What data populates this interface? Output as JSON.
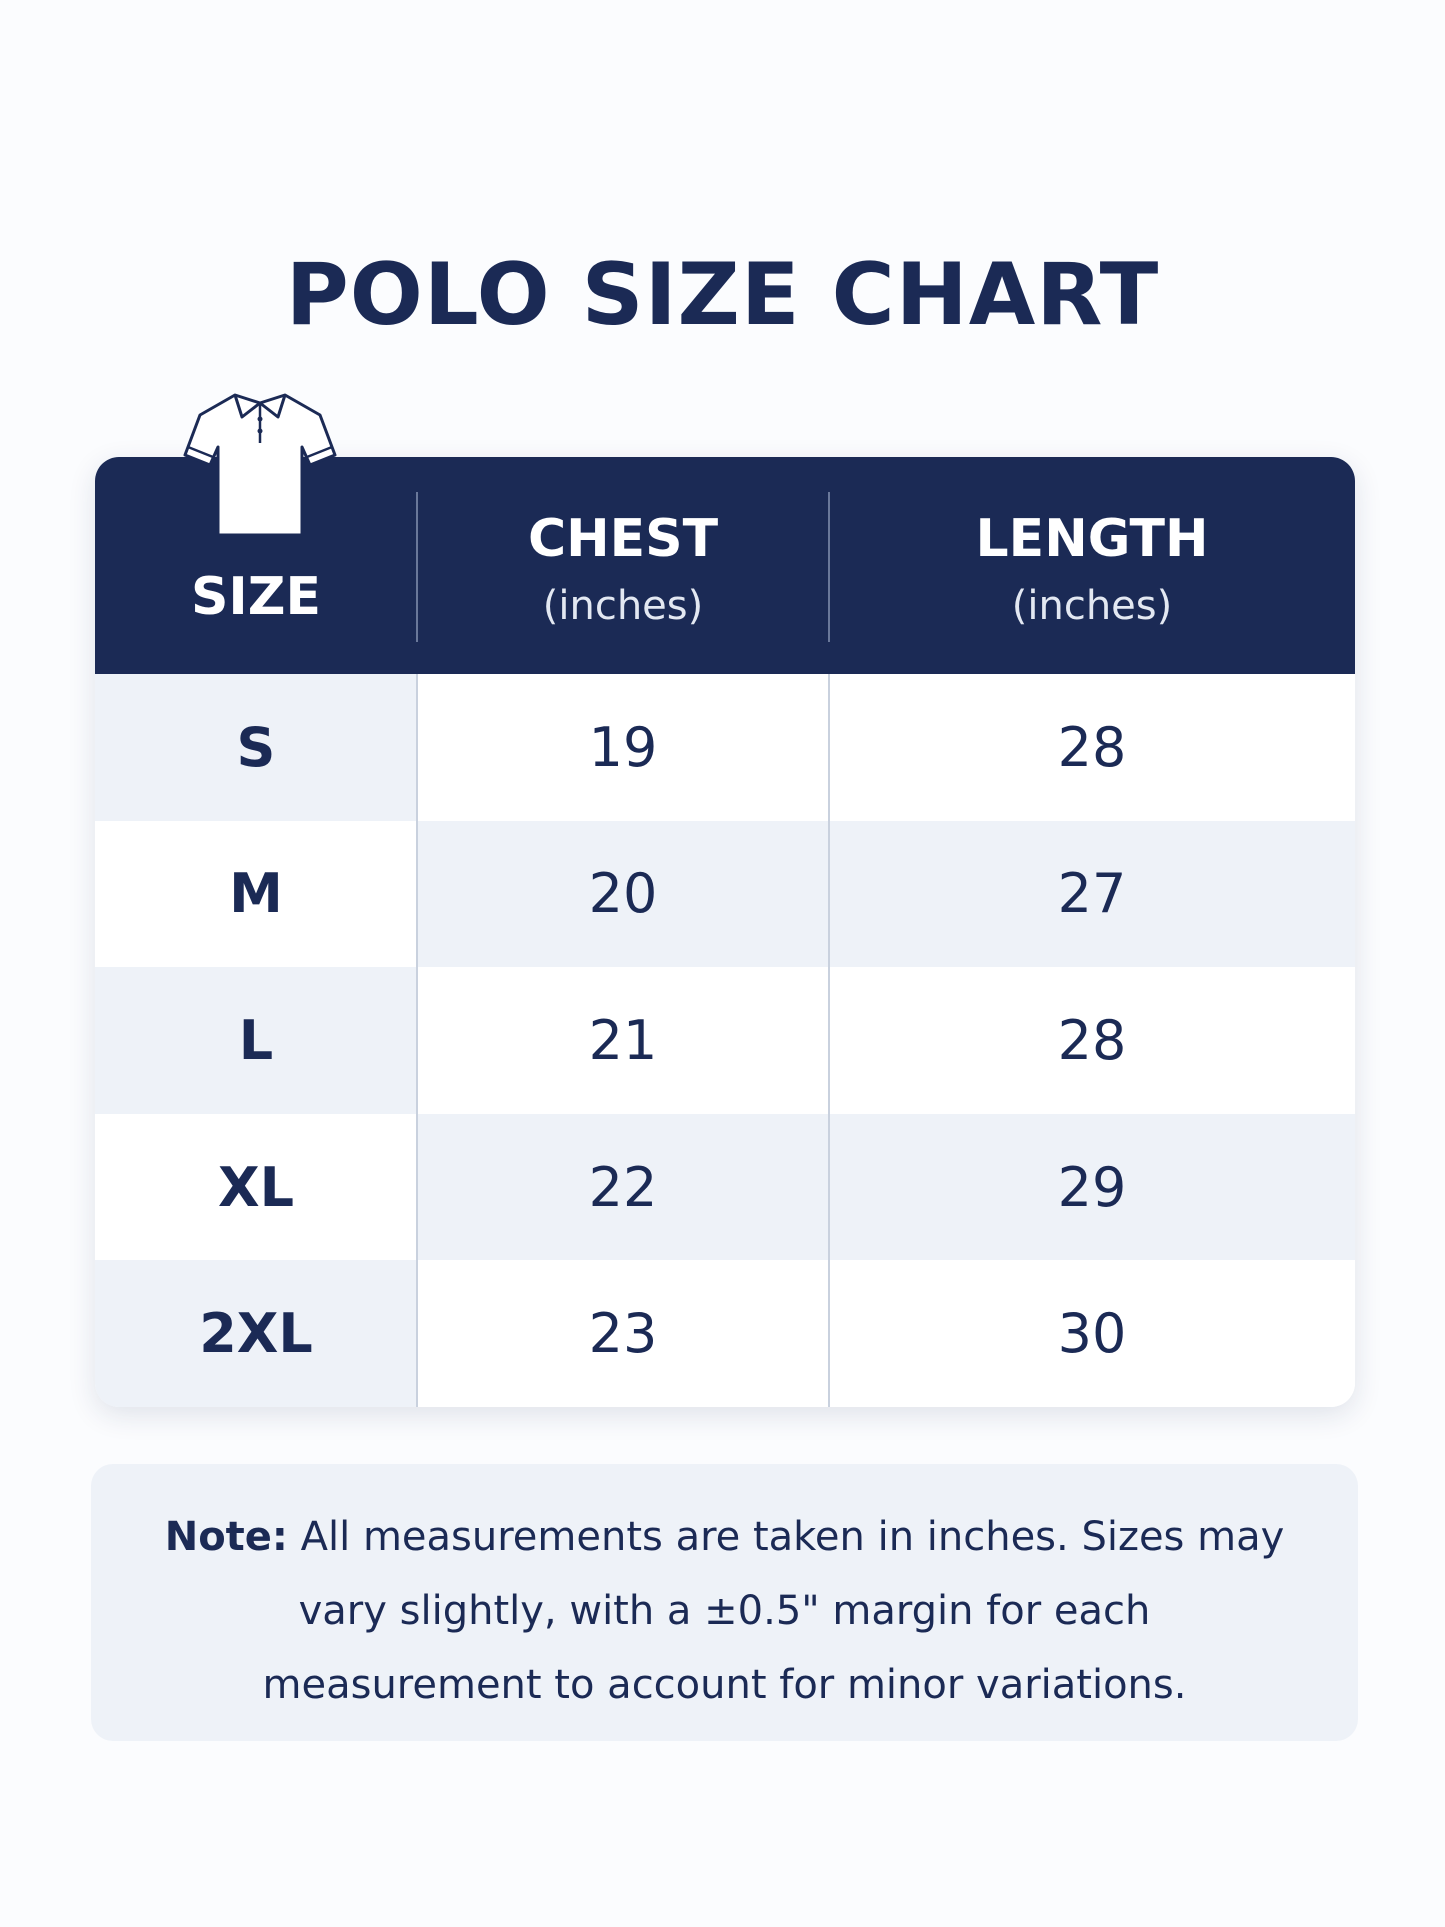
{
  "header": {
    "title": "POLO SIZE CHART"
  },
  "table": {
    "columns": [
      {
        "label": "SIZE"
      },
      {
        "label": "CHEST",
        "unit": "(inches)"
      },
      {
        "label": "LENGTH",
        "unit": "(inches)"
      }
    ],
    "rows": [
      [
        "S",
        19,
        28
      ],
      [
        "M",
        20,
        27
      ],
      [
        "L",
        21,
        28
      ],
      [
        "XL",
        22,
        29
      ],
      [
        "2XL",
        23,
        30
      ]
    ]
  },
  "note": {
    "label": "Note:",
    "text": "All measurements are taken in inches. Sizes may vary slightly, with a ±0.5\" margin for each measurement to account for minor variations."
  }
}
